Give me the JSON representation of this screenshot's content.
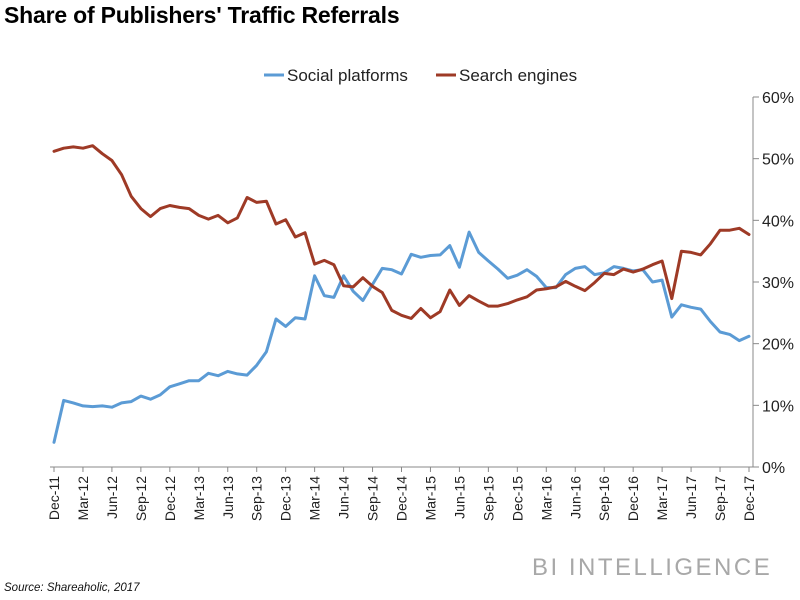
{
  "title": "Share of Publishers' Traffic Referrals",
  "source": "Source: Shareaholic, 2017",
  "brand": "BI INTELLIGENCE",
  "colors": {
    "social": "#5b9bd5",
    "search": "#9e3a26",
    "axis": "#888888"
  },
  "chart_data": {
    "type": "line",
    "title": "Share of Publishers' Traffic Referrals",
    "xlabel": "",
    "ylabel": "",
    "ylim": [
      0,
      60
    ],
    "yticks": [
      "0%",
      "10%",
      "20%",
      "30%",
      "40%",
      "50%",
      "60%"
    ],
    "y_axis_side": "right",
    "grid": false,
    "legend": "top-center",
    "x_tick_labels": [
      "Dec-11",
      "Mar-12",
      "Jun-12",
      "Sep-12",
      "Dec-12",
      "Mar-13",
      "Jun-13",
      "Sep-13",
      "Dec-13",
      "Mar-14",
      "Jun-14",
      "Sep-14",
      "Dec-14",
      "Mar-15",
      "Jun-15",
      "Sep-15",
      "Dec-15",
      "Mar-16",
      "Jun-16",
      "Sep-16",
      "Dec-16",
      "Mar-17",
      "Jun-17",
      "Sep-17",
      "Dec-17"
    ],
    "x_start": "Dec-11",
    "x_end": "Dec-17",
    "series": [
      {
        "name": "Social platforms",
        "color": "#5b9bd5",
        "values": [
          4,
          10.8,
          10.4,
          9.9,
          9.8,
          9.9,
          9.7,
          10.4,
          10.6,
          11.5,
          11,
          11.7,
          13,
          13.5,
          14,
          14,
          15.2,
          14.8,
          15.5,
          15.1,
          14.9,
          16.5,
          18.7,
          24,
          22.8,
          24.2,
          24,
          31,
          27.8,
          27.5,
          31,
          28.5,
          27,
          29.6,
          32.2,
          32,
          31.3,
          34.5,
          34,
          34.3,
          34.4,
          35.9,
          32.4,
          38.1,
          34.8,
          33.4,
          32.1,
          30.6,
          31.1,
          32,
          30.9,
          29.1,
          29.1,
          31.2,
          32.2,
          32.5,
          31.2,
          31.5,
          32.5,
          32.2,
          31.8,
          32,
          30,
          30.3,
          24.3,
          26.3,
          25.9,
          25.6,
          23.6,
          21.9,
          21.5,
          20.5,
          21.2
        ]
      },
      {
        "name": "Search engines",
        "color": "#9e3a26",
        "values": [
          51.2,
          51.7,
          51.9,
          51.7,
          52.1,
          50.8,
          49.7,
          47.4,
          43.9,
          41.9,
          40.6,
          41.9,
          42.4,
          42.1,
          41.9,
          40.8,
          40.2,
          40.8,
          39.6,
          40.4,
          43.7,
          42.9,
          43.1,
          39.4,
          40.1,
          37.3,
          38,
          32.9,
          33.5,
          32.8,
          29.4,
          29.2,
          30.7,
          29.3,
          28.3,
          25.4,
          24.6,
          24.1,
          25.7,
          24.2,
          25.2,
          28.7,
          26.2,
          27.8,
          26.9,
          26.1,
          26.1,
          26.5,
          27.1,
          27.6,
          28.7,
          28.9,
          29.2,
          30.1,
          29.3,
          28.6,
          29.9,
          31.4,
          31.2,
          32.1,
          31.6,
          32.1,
          32.8,
          33.4,
          27.3,
          35,
          34.8,
          34.4,
          36.2,
          38.4,
          38.4,
          38.7,
          37.7
        ]
      }
    ]
  }
}
